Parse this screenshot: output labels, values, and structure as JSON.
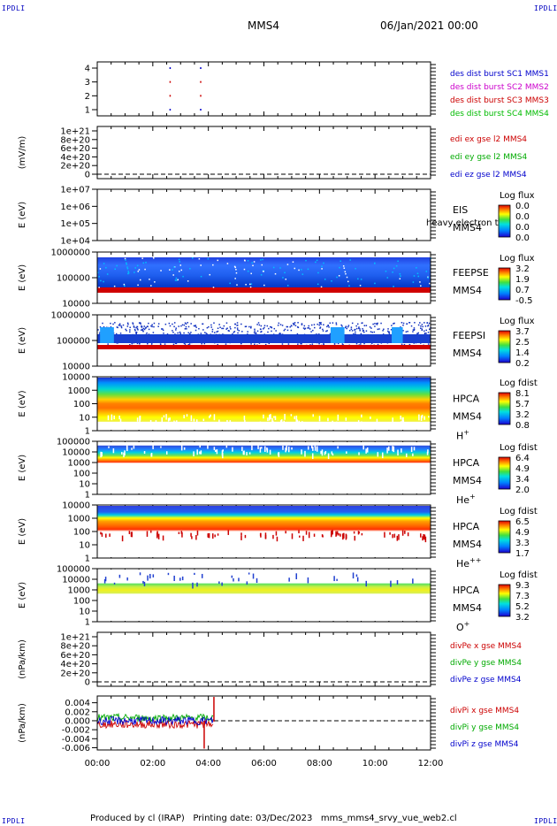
{
  "corner_label": "IPDLI",
  "header": {
    "spacecraft": "MMS4",
    "datetime": "06/Jan/2021 00:00"
  },
  "footer": {
    "produced_by": "Produced by cl (IRAP)",
    "printing_date": "Printing date: 03/Dec/2023",
    "script_name": "mms_mms4_srvy_vue_web2.cl"
  },
  "chart_data": {
    "type": "line",
    "x_axis": {
      "ticks": [
        "00:00",
        "02:00",
        "04:00",
        "06:00",
        "08:00",
        "10:00",
        "12:00"
      ],
      "range_hours": [
        0,
        12
      ]
    },
    "panels": [
      {
        "id": "burst",
        "ylabel": "",
        "yticks": [
          "1",
          "2",
          "3",
          "4"
        ],
        "legend": [
          {
            "text": "des dist burst SC1 MMS1",
            "color": "#0000cc"
          },
          {
            "text": "des dist burst SC2 MMS2",
            "color": "#cc00cc"
          },
          {
            "text": "des dist burst SC3 MMS3",
            "color": "#cc0000"
          },
          {
            "text": "des dist burst SC4 MMS4",
            "color": "#00bb00"
          }
        ],
        "events": [
          {
            "hour": 2.6,
            "levels": [
              1,
              2,
              3,
              4
            ]
          },
          {
            "hour": 3.7,
            "levels": [
              1,
              2,
              3,
              4
            ]
          }
        ]
      },
      {
        "id": "edi",
        "ylabel": "(mV/m)",
        "yticks": [
          "0",
          "2e+20",
          "4e+20",
          "6e+20",
          "8e+20",
          "1e+21"
        ],
        "legend": [
          {
            "text": "edi ex gse l2 MMS4",
            "color": "#cc0000"
          },
          {
            "text": "edi ey gse l2 MMS4",
            "color": "#00aa00"
          },
          {
            "text": "edi ez gse l2 MMS4",
            "color": "#0000cc"
          }
        ]
      },
      {
        "id": "eis",
        "ylabel": "E (eV)",
        "yticks": [
          "1e+04",
          "1e+05",
          "1e+06",
          "1e+07"
        ],
        "labels": [
          "EIS",
          "MMS4"
        ],
        "overlay_text": "heavy electron to",
        "colorbar": {
          "title": "Log flux",
          "ticks": [
            "0.0",
            "0.0",
            "0.0",
            "0.0"
          ]
        }
      },
      {
        "id": "feepse",
        "ylabel": "E (eV)",
        "yticks": [
          "10000",
          "100000",
          "1000000"
        ],
        "labels": [
          "FEEPSE",
          "MMS4"
        ],
        "colorbar": {
          "title": "Log flux",
          "ticks": [
            "3.2",
            "1.9",
            "0.7",
            "-0.5"
          ]
        }
      },
      {
        "id": "feepsi",
        "ylabel": "E (eV)",
        "yticks": [
          "10000",
          "100000",
          "1000000"
        ],
        "labels": [
          "FEEPSI",
          "MMS4"
        ],
        "colorbar": {
          "title": "Log flux",
          "ticks": [
            "3.7",
            "2.5",
            "1.4",
            "0.2"
          ]
        }
      },
      {
        "id": "hpca_h",
        "ylabel": "E (eV)",
        "yticks": [
          "1",
          "10",
          "100",
          "1000",
          "10000"
        ],
        "labels": [
          "HPCA",
          "MMS4"
        ],
        "species": {
          "base": "H",
          "sup": "+"
        },
        "colorbar": {
          "title": "Log fdist",
          "ticks": [
            "8.1",
            "5.7",
            "3.2",
            "0.8"
          ]
        }
      },
      {
        "id": "hpca_he",
        "ylabel": "E (eV)",
        "yticks": [
          "1",
          "10",
          "100",
          "1000",
          "10000",
          "100000"
        ],
        "labels": [
          "HPCA",
          "MMS4"
        ],
        "species": {
          "base": "He",
          "sup": "+"
        },
        "colorbar": {
          "title": "Log fdist",
          "ticks": [
            "6.4",
            "4.9",
            "3.4",
            "2.0"
          ]
        }
      },
      {
        "id": "hpca_he2",
        "ylabel": "E (eV)",
        "yticks": [
          "1",
          "10",
          "100",
          "1000",
          "10000"
        ],
        "labels": [
          "HPCA",
          "MMS4"
        ],
        "species": {
          "base": "He",
          "sup": "++"
        },
        "colorbar": {
          "title": "Log fdist",
          "ticks": [
            "6.5",
            "4.9",
            "3.3",
            "1.7"
          ]
        }
      },
      {
        "id": "hpca_o",
        "ylabel": "E (eV)",
        "yticks": [
          "1",
          "10",
          "100",
          "1000",
          "10000",
          "100000"
        ],
        "labels": [
          "HPCA",
          "MMS4"
        ],
        "species": {
          "base": "O",
          "sup": "+"
        },
        "colorbar": {
          "title": "Log fdist",
          "ticks": [
            "9.3",
            "7.3",
            "5.2",
            "3.2"
          ]
        }
      },
      {
        "id": "divpe",
        "ylabel": "(nPa/km)",
        "yticks": [
          "0",
          "2e+20",
          "4e+20",
          "6e+20",
          "8e+20",
          "1e+21"
        ],
        "legend": [
          {
            "text": "divPe x gse MMS4",
            "color": "#cc0000"
          },
          {
            "text": "divPe y gse MMS4",
            "color": "#00aa00"
          },
          {
            "text": "divPe z gse MMS4",
            "color": "#0000cc"
          }
        ]
      },
      {
        "id": "divpi",
        "ylabel": "(nPa/km)",
        "yticks": [
          "-0.006",
          "-0.004",
          "-0.002",
          "0.000",
          "0.002",
          "0.004"
        ],
        "yrange": [
          -0.0065,
          0.0055
        ],
        "data_end_hour": 4.2,
        "legend": [
          {
            "text": "divPi x gse MMS4",
            "color": "#cc0000"
          },
          {
            "text": "divPi y gse MMS4",
            "color": "#00aa00"
          },
          {
            "text": "divPi z gse MMS4",
            "color": "#0000cc"
          }
        ]
      }
    ]
  }
}
